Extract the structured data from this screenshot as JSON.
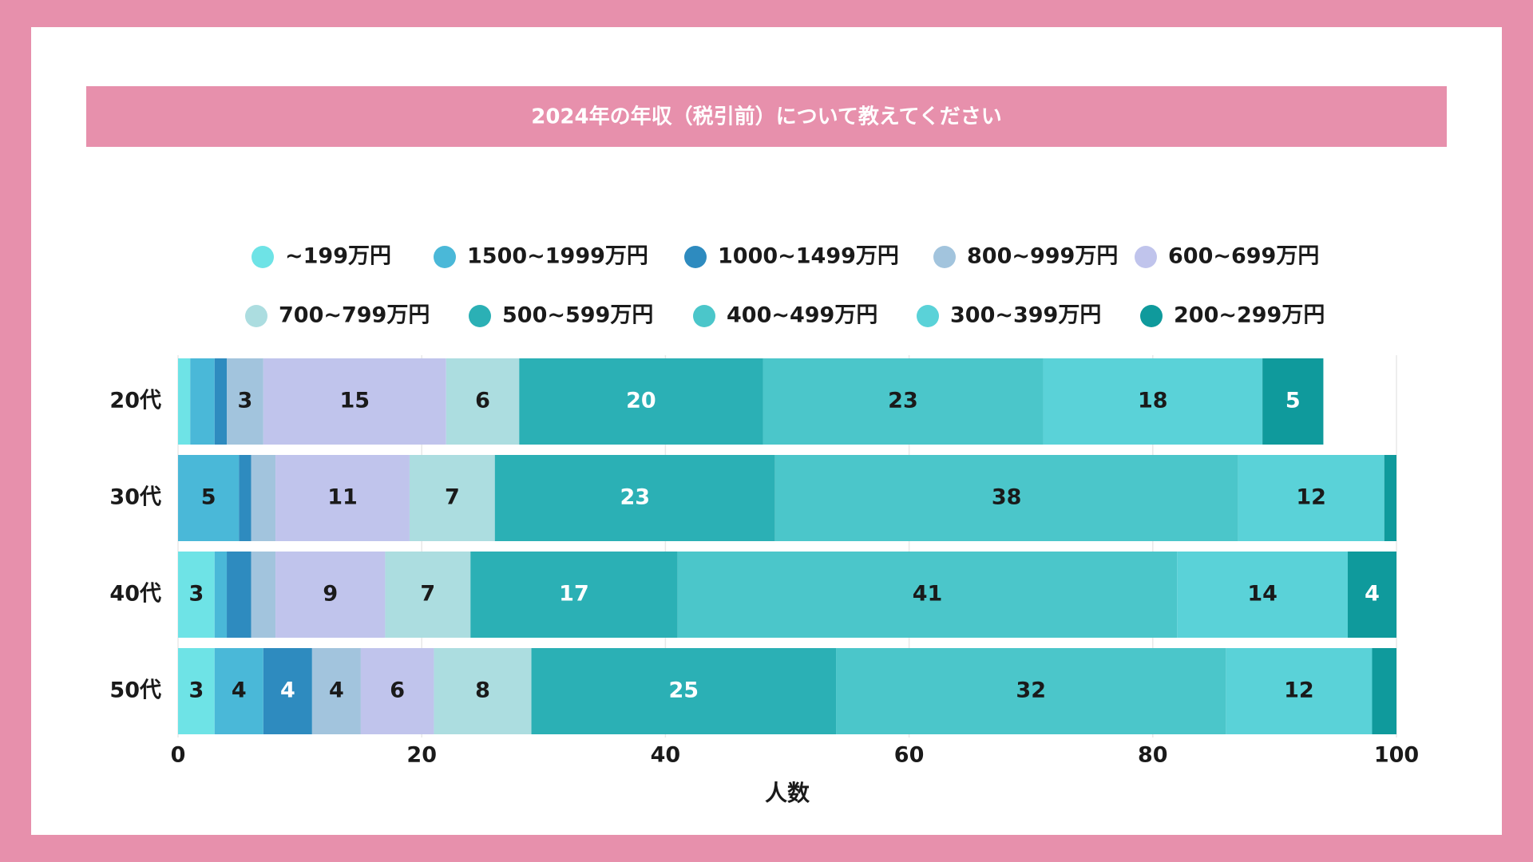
{
  "chart_data": {
    "type": "stacked_barh",
    "title": "2024年の年収（税引前）について教えてください",
    "xlabel": "人数",
    "categories": [
      "20代",
      "30代",
      "40代",
      "50代"
    ],
    "series": [
      {
        "name": "~199万円",
        "color": "#6ee3e6",
        "values": [
          1,
          0,
          3,
          3
        ]
      },
      {
        "name": "1500~1999万円",
        "color": "#4ab8d8",
        "values": [
          2,
          5,
          1,
          4
        ]
      },
      {
        "name": "1000~1499万円",
        "color": "#2e8bbf",
        "values": [
          1,
          1,
          2,
          4
        ]
      },
      {
        "name": "800~999万円",
        "color": "#a2c4dd",
        "values": [
          3,
          2,
          2,
          4
        ]
      },
      {
        "name": "600~699万円",
        "color": "#c0c4ec",
        "values": [
          15,
          11,
          9,
          6
        ]
      },
      {
        "name": "700~799万円",
        "color": "#acdde0",
        "values": [
          6,
          7,
          7,
          8
        ]
      },
      {
        "name": "500~599万円",
        "color": "#2bb0b5",
        "values": [
          20,
          23,
          17,
          25
        ]
      },
      {
        "name": "400~499万円",
        "color": "#4bc6ca",
        "values": [
          23,
          38,
          41,
          32
        ]
      },
      {
        "name": "300~399万円",
        "color": "#5ad2d8",
        "values": [
          18,
          12,
          14,
          12
        ]
      },
      {
        "name": "200~299万円",
        "color": "#0f9a9c",
        "values": [
          5,
          1,
          4,
          2
        ]
      }
    ],
    "xlim": [
      0,
      100
    ],
    "xticks": [
      0,
      20,
      40,
      60,
      80,
      100
    ],
    "grid": true
  }
}
